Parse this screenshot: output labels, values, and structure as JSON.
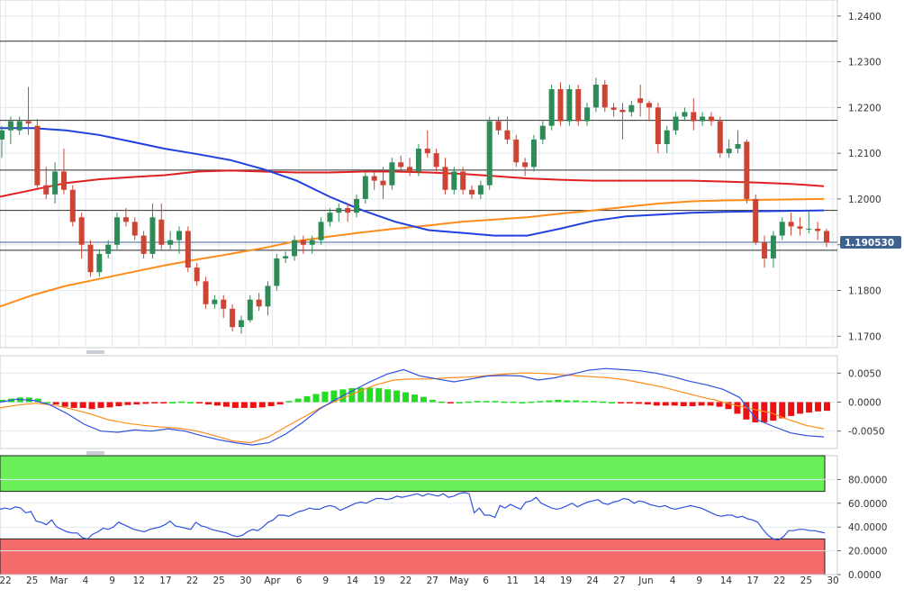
{
  "chart_data": [
    {
      "panel": "price",
      "type": "candlestick",
      "yticks": [
        "1.2400",
        "1.2300",
        "1.2200",
        "1.2100",
        "1.2000",
        "1.1900",
        "1.1800",
        "1.1700"
      ],
      "ylim": [
        1.1675,
        1.2435
      ],
      "horizontal_levels": [
        1.2345,
        1.2172,
        1.2063,
        1.1975,
        1.1888
      ],
      "current_price_label": "1.190530",
      "current_price": 1.19053,
      "candles": [
        [
          1.213,
          1.215,
          1.209,
          1.216
        ],
        [
          1.215,
          1.217,
          1.212,
          1.218
        ],
        [
          1.215,
          1.217,
          1.214,
          1.218
        ],
        [
          1.217,
          1.2165,
          1.214,
          1.2245
        ],
        [
          1.216,
          1.203,
          1.202,
          1.2175
        ],
        [
          1.203,
          1.201,
          1.2,
          1.207
        ],
        [
          1.201,
          1.206,
          1.199,
          1.208
        ],
        [
          1.206,
          1.202,
          1.201,
          1.211
        ],
        [
          1.202,
          1.195,
          1.194,
          1.203
        ],
        [
          1.196,
          1.19,
          1.187,
          1.197
        ],
        [
          1.19,
          1.184,
          1.183,
          1.191
        ],
        [
          1.184,
          1.188,
          1.183,
          1.189
        ],
        [
          1.188,
          1.19,
          1.187,
          1.191
        ],
        [
          1.19,
          1.196,
          1.189,
          1.197
        ],
        [
          1.196,
          1.195,
          1.194,
          1.198
        ],
        [
          1.195,
          1.192,
          1.191,
          1.196
        ],
        [
          1.192,
          1.188,
          1.187,
          1.193
        ],
        [
          1.188,
          1.196,
          1.187,
          1.199
        ],
        [
          1.1955,
          1.19,
          1.189,
          1.199
        ],
        [
          1.19,
          1.191,
          1.189,
          1.193
        ],
        [
          1.191,
          1.193,
          1.188,
          1.194
        ],
        [
          1.193,
          1.185,
          1.184,
          1.194
        ],
        [
          1.185,
          1.182,
          1.181,
          1.186
        ],
        [
          1.182,
          1.177,
          1.176,
          1.183
        ],
        [
          1.177,
          1.178,
          1.176,
          1.179
        ],
        [
          1.178,
          1.176,
          1.174,
          1.179
        ],
        [
          1.176,
          1.172,
          1.171,
          1.177
        ],
        [
          1.172,
          1.1735,
          1.1705,
          1.1745
        ],
        [
          1.1735,
          1.178,
          1.173,
          1.179
        ],
        [
          1.178,
          1.1765,
          1.1755,
          1.1795
        ],
        [
          1.1765,
          1.181,
          1.1745,
          1.182
        ],
        [
          1.181,
          1.187,
          1.18,
          1.188
        ],
        [
          1.187,
          1.1875,
          1.186,
          1.1885
        ],
        [
          1.1875,
          1.191,
          1.1865,
          1.192
        ],
        [
          1.191,
          1.19,
          1.188,
          1.192
        ],
        [
          1.19,
          1.191,
          1.188,
          1.192
        ],
        [
          1.191,
          1.195,
          1.19,
          1.196
        ],
        [
          1.195,
          1.197,
          1.194,
          1.198
        ],
        [
          1.197,
          1.198,
          1.195,
          1.199
        ],
        [
          1.198,
          1.197,
          1.195,
          1.199
        ],
        [
          1.197,
          1.2,
          1.196,
          1.201
        ],
        [
          1.2,
          1.205,
          1.199,
          1.206
        ],
        [
          1.205,
          1.204,
          1.202,
          1.206
        ],
        [
          1.204,
          1.203,
          1.2,
          1.207
        ],
        [
          1.203,
          1.208,
          1.202,
          1.209
        ],
        [
          1.208,
          1.207,
          1.206,
          1.2095
        ],
        [
          1.207,
          1.206,
          1.205,
          1.209
        ],
        [
          1.206,
          1.211,
          1.205,
          1.212
        ],
        [
          1.211,
          1.21,
          1.209,
          1.215
        ],
        [
          1.21,
          1.207,
          1.206,
          1.211
        ],
        [
          1.207,
          1.202,
          1.201,
          1.209
        ],
        [
          1.202,
          1.206,
          1.201,
          1.207
        ],
        [
          1.206,
          1.202,
          1.201,
          1.207
        ],
        [
          1.202,
          1.201,
          1.2,
          1.203
        ],
        [
          1.201,
          1.203,
          1.2,
          1.204
        ],
        [
          1.203,
          1.217,
          1.202,
          1.218
        ],
        [
          1.217,
          1.215,
          1.214,
          1.218
        ],
        [
          1.215,
          1.213,
          1.212,
          1.218
        ],
        [
          1.213,
          1.208,
          1.207,
          1.214
        ],
        [
          1.208,
          1.207,
          1.205,
          1.209
        ],
        [
          1.207,
          1.213,
          1.206,
          1.214
        ],
        [
          1.213,
          1.216,
          1.212,
          1.217
        ],
        [
          1.216,
          1.224,
          1.215,
          1.225
        ],
        [
          1.224,
          1.217,
          1.216,
          1.2255
        ],
        [
          1.217,
          1.224,
          1.216,
          1.225
        ],
        [
          1.224,
          1.217,
          1.216,
          1.225
        ],
        [
          1.217,
          1.22,
          1.216,
          1.221
        ],
        [
          1.22,
          1.225,
          1.219,
          1.2265
        ],
        [
          1.225,
          1.22,
          1.219,
          1.226
        ],
        [
          1.22,
          1.2195,
          1.218,
          1.221
        ],
        [
          1.2195,
          1.219,
          1.213,
          1.221
        ],
        [
          1.219,
          1.2205,
          1.218,
          1.2215
        ],
        [
          1.222,
          1.221,
          1.218,
          1.225
        ],
        [
          1.221,
          1.22,
          1.217,
          1.2215
        ],
        [
          1.22,
          1.212,
          1.21,
          1.221
        ],
        [
          1.212,
          1.215,
          1.21,
          1.216
        ],
        [
          1.215,
          1.218,
          1.214,
          1.219
        ],
        [
          1.218,
          1.219,
          1.217,
          1.22
        ],
        [
          1.219,
          1.217,
          1.215,
          1.222
        ],
        [
          1.217,
          1.218,
          1.216,
          1.219
        ],
        [
          1.218,
          1.217,
          1.216,
          1.219
        ],
        [
          1.217,
          1.21,
          1.209,
          1.218
        ],
        [
          1.21,
          1.211,
          1.209,
          1.213
        ],
        [
          1.211,
          1.212,
          1.21,
          1.215
        ],
        [
          1.2125,
          1.2,
          1.199,
          1.213
        ],
        [
          1.2,
          1.1905,
          1.19,
          1.201
        ],
        [
          1.1905,
          1.187,
          1.185,
          1.192
        ],
        [
          1.187,
          1.192,
          1.185,
          1.193
        ],
        [
          1.192,
          1.195,
          1.191,
          1.196
        ],
        [
          1.195,
          1.194,
          1.192,
          1.197
        ],
        [
          1.194,
          1.1935,
          1.192,
          1.196
        ],
        [
          1.1935,
          1.1935,
          1.1925,
          1.1975
        ],
        [
          1.1935,
          1.193,
          1.191,
          1.195
        ],
        [
          1.193,
          1.1905,
          1.1895,
          1.1935
        ]
      ],
      "ma_blue": [
        1.2155,
        1.2155,
        1.215,
        1.214,
        1.2125,
        1.211,
        1.2098,
        1.2085,
        1.2065,
        1.204,
        1.2005,
        1.1975,
        1.195,
        1.1932,
        1.1926,
        1.192,
        1.192,
        1.1935,
        1.1952,
        1.1962,
        1.1966,
        1.197,
        1.1972,
        1.1973,
        1.1974,
        1.1975
      ],
      "ma_red": [
        1.2005,
        1.202,
        1.2035,
        1.2043,
        1.2048,
        1.2052,
        1.206,
        1.2062,
        1.206,
        1.2058,
        1.2058,
        1.206,
        1.206,
        1.2058,
        1.2055,
        1.205,
        1.2045,
        1.2042,
        1.204,
        1.204,
        1.204,
        1.204,
        1.2038,
        1.2036,
        1.2033,
        1.2028
      ],
      "ma_orange": [
        1.1765,
        1.179,
        1.181,
        1.1825,
        1.184,
        1.1855,
        1.1868,
        1.188,
        1.1893,
        1.1908,
        1.1918,
        1.1927,
        1.1935,
        1.1942,
        1.195,
        1.1955,
        1.196,
        1.1968,
        1.1975,
        1.1983,
        1.199,
        1.1995,
        1.1997,
        1.1998,
        1.1999,
        1.2
      ]
    },
    {
      "panel": "macd",
      "type": "histogram+lines",
      "yticks": [
        "0.0050",
        "0.0000",
        "-0.0050"
      ],
      "ylim": [
        -0.008,
        0.008
      ],
      "histogram": [
        0.0004,
        0.0006,
        0.0008,
        0.0008,
        0.0006,
        0.0,
        -0.0004,
        -0.0008,
        -0.001,
        -0.001,
        -0.0012,
        -0.001,
        -0.0009,
        -0.0007,
        -0.0005,
        -0.0004,
        -0.0003,
        -0.0002,
        -0.0001,
        0.0,
        0.0001,
        0.0,
        -0.0002,
        -0.0004,
        -0.0006,
        -0.0008,
        -0.001,
        -0.001,
        -0.001,
        -0.0009,
        -0.0007,
        -0.0004,
        0.0002,
        0.0006,
        0.001,
        0.0014,
        0.0018,
        0.002,
        0.0022,
        0.0024,
        0.0025,
        0.0025,
        0.0024,
        0.0022,
        0.002,
        0.0017,
        0.0013,
        0.0009,
        0.0004,
        0.0001,
        -0.0001,
        0.0,
        0.0001,
        0.0002,
        0.0002,
        0.0002,
        0.0001,
        0.0001,
        0.0,
        0.0001,
        0.0002,
        0.0003,
        0.0004,
        0.0003,
        0.0003,
        0.0002,
        0.0002,
        0.0001,
        0.0,
        -0.0001,
        -0.0002,
        -0.0003,
        -0.0004,
        -0.0006,
        -0.0006,
        -0.0006,
        -0.0007,
        -0.0007,
        -0.0006,
        -0.0006,
        -0.0008,
        -0.0012,
        -0.002,
        -0.003,
        -0.0035,
        -0.0035,
        -0.0032,
        -0.0028,
        -0.0024,
        -0.002,
        -0.0018,
        -0.0016,
        -0.0015
      ],
      "macd_line": [
        0.0,
        0.0005,
        0.0003,
        -0.0005,
        -0.002,
        -0.0038,
        -0.005,
        -0.0052,
        -0.0048,
        -0.005,
        -0.0046,
        -0.005,
        -0.0058,
        -0.0065,
        -0.007,
        -0.0074,
        -0.007,
        -0.0055,
        -0.0035,
        -0.0012,
        0.0005,
        0.002,
        0.0035,
        0.0048,
        0.0056,
        0.0045,
        0.004,
        0.0035,
        0.004,
        0.0045,
        0.0046,
        0.0045,
        0.0038,
        0.0042,
        0.0048,
        0.0055,
        0.0058,
        0.0056,
        0.0054,
        0.005,
        0.0044,
        0.0036,
        0.003,
        0.0022,
        0.0008,
        -0.003,
        -0.0042,
        -0.0053,
        -0.0058,
        -0.006
      ],
      "signal_line": [
        -0.001,
        -0.0005,
        -0.0002,
        -0.0005,
        -0.0012,
        -0.002,
        -0.003,
        -0.0036,
        -0.004,
        -0.0043,
        -0.0045,
        -0.005,
        -0.0058,
        -0.0067,
        -0.007,
        -0.006,
        -0.0042,
        -0.0025,
        -0.0008,
        0.0005,
        0.0018,
        0.003,
        0.0038,
        0.004,
        0.004,
        0.0042,
        0.0043,
        0.0045,
        0.0048,
        0.005,
        0.005,
        0.0048,
        0.0046,
        0.0044,
        0.0042,
        0.0038,
        0.0032,
        0.0026,
        0.0018,
        0.001,
        0.0003,
        -0.0005,
        -0.0012,
        -0.0018,
        -0.003,
        -0.004,
        -0.0046
      ]
    },
    {
      "panel": "rsi",
      "type": "line",
      "yticks": [
        "80.0000",
        "60.0000",
        "40.0000",
        "20.0000",
        "0.0000"
      ],
      "ylim": [
        0,
        100
      ],
      "overbought_zone": [
        70,
        100
      ],
      "oversold_zone": [
        0,
        30
      ],
      "values": [
        55,
        56,
        55,
        57,
        56,
        52,
        53,
        45,
        44,
        42,
        46,
        40,
        38,
        36,
        35,
        35,
        31,
        30,
        34,
        36,
        39,
        38,
        40,
        44,
        42,
        40,
        38,
        37,
        36,
        38,
        39,
        40,
        42,
        45,
        41,
        40,
        39,
        38,
        44,
        41,
        40,
        38,
        37,
        36,
        35,
        33,
        32,
        33,
        36,
        38,
        37,
        40,
        44,
        46,
        50,
        50,
        49,
        51,
        53,
        54,
        56,
        55,
        55,
        57,
        58,
        57,
        54,
        56,
        58,
        60,
        61,
        60,
        62,
        64,
        64,
        63,
        64,
        66,
        65,
        66,
        67,
        68,
        66,
        68,
        67,
        66,
        68,
        65,
        66,
        68,
        69,
        68,
        52,
        56,
        50,
        50,
        48,
        58,
        56,
        59,
        57,
        55,
        61,
        62,
        65,
        60,
        58,
        56,
        55,
        56,
        58,
        60,
        57,
        59,
        61,
        62,
        63,
        60,
        59,
        61,
        62,
        64,
        63,
        60,
        62,
        61,
        59,
        58,
        57,
        58,
        56,
        55,
        56,
        57,
        58,
        57,
        56,
        54,
        52,
        50,
        49,
        50,
        50,
        48,
        49,
        47,
        46,
        44,
        38,
        33,
        30,
        29,
        32,
        37,
        37,
        38,
        38,
        37,
        37,
        36,
        35
      ],
      "marker": "28"
    }
  ],
  "xaxis": {
    "labels": [
      "22",
      "25",
      "Mar",
      "4",
      "9",
      "12",
      "17",
      "22",
      "25",
      "30",
      "Apr",
      "6",
      "9",
      "14",
      "19",
      "22",
      "27",
      "May",
      "6",
      "11",
      "14",
      "19",
      "24",
      "27",
      "Jun",
      "4",
      "9",
      "14",
      "17",
      "22",
      "25",
      "30"
    ]
  }
}
